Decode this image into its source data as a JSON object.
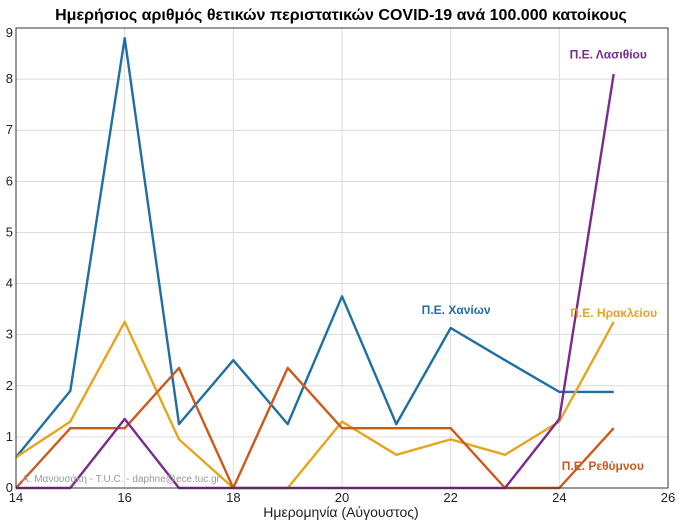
{
  "chart_data": {
    "type": "line",
    "title": "Ημερήσιος αριθμός θετικών περιστατικών COVID-19 ανά 100.000 κατοίκους",
    "xlabel": "Ημερομηνία (Αύγουστος)",
    "ylabel": "",
    "xlim": [
      14,
      26
    ],
    "ylim": [
      0,
      9
    ],
    "xticks": [
      14,
      16,
      18,
      20,
      22,
      24,
      26
    ],
    "yticks": [
      0,
      1,
      2,
      3,
      4,
      5,
      6,
      7,
      8,
      9
    ],
    "grid": true,
    "x": [
      14,
      15,
      16,
      17,
      18,
      19,
      20,
      21,
      22,
      23,
      24,
      25
    ],
    "series": [
      {
        "name": "Π.Ε. Χανίων",
        "color": "#1f6fa3",
        "values": [
          0.6,
          1.9,
          8.8,
          1.25,
          2.5,
          1.25,
          3.75,
          1.25,
          3.13,
          2.5,
          1.88,
          1.88
        ]
      },
      {
        "name": "Π.Ε. Ηρακλείου",
        "color": "#e6a51e",
        "values": [
          0.6,
          1.3,
          3.25,
          0.95,
          0.0,
          0.0,
          1.3,
          0.65,
          0.95,
          0.65,
          1.3,
          3.25
        ]
      },
      {
        "name": "Π.Ε. Ρεθύμνου",
        "color": "#cc5a1e",
        "values": [
          0.0,
          1.17,
          1.17,
          2.35,
          0.0,
          2.35,
          1.17,
          1.17,
          1.17,
          0.0,
          0.0,
          1.17
        ]
      },
      {
        "name": "Π.Ε. Λασιθίου",
        "color": "#7b2a8e",
        "values": [
          0.0,
          0.0,
          1.35,
          0.0,
          0.0,
          0.0,
          0.0,
          0.0,
          0.0,
          0.0,
          1.35,
          8.1
        ]
      }
    ],
    "annotations": [
      {
        "text": "Π.Ε. Λασιθίου",
        "x": 24.9,
        "y": 8.4,
        "color": "#7b2a8e"
      },
      {
        "text": "Π.Ε. Χανίων",
        "x": 22.1,
        "y": 3.4,
        "color": "#1f6fa3"
      },
      {
        "text": "Π.Ε. Ηρακλείου",
        "x": 25.0,
        "y": 3.35,
        "color": "#e6a51e"
      },
      {
        "text": "Π.Ε. Ρεθύμνου",
        "x": 24.8,
        "y": 0.35,
        "color": "#cc5a1e"
      }
    ],
    "watermark": "Α. Μανουσάκη  - T.U.C. -  daphne@ece.tuc.gr"
  }
}
